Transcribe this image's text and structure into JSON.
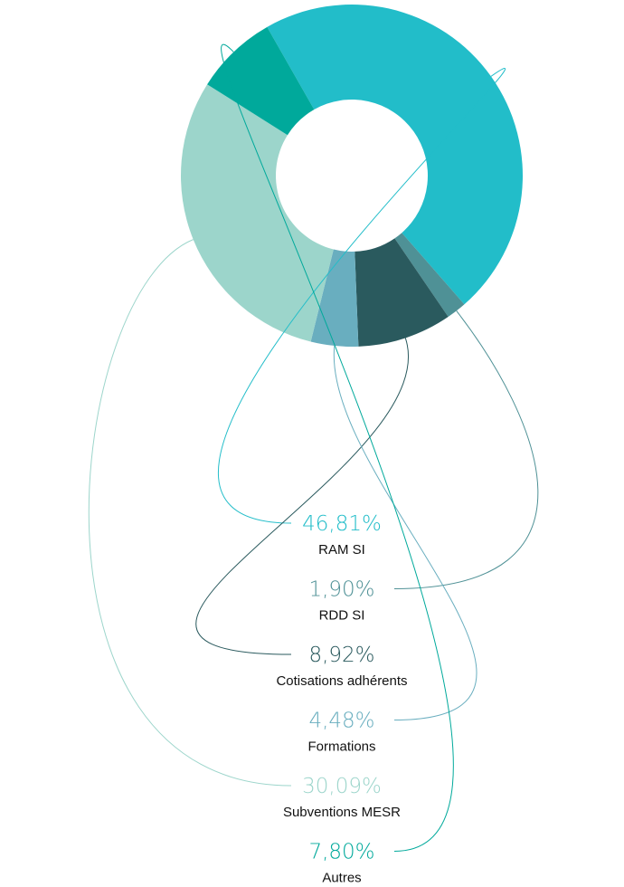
{
  "chart_data": {
    "type": "pie",
    "categories": [
      "RAM SI",
      "RDD SI",
      "Cotisations adhérents",
      "Formations",
      "Subventions MESR",
      "Autres"
    ],
    "values": [
      46.81,
      1.9,
      8.92,
      4.48,
      30.09,
      7.8
    ],
    "value_labels": [
      "46,81%",
      "1,90%",
      "8,92%",
      "4,48%",
      "30,09%",
      "7,80%"
    ],
    "colors": [
      "#22bdc9",
      "#4f9196",
      "#2a5a5e",
      "#69aebf",
      "#9cd5cb",
      "#00a99b"
    ]
  }
}
